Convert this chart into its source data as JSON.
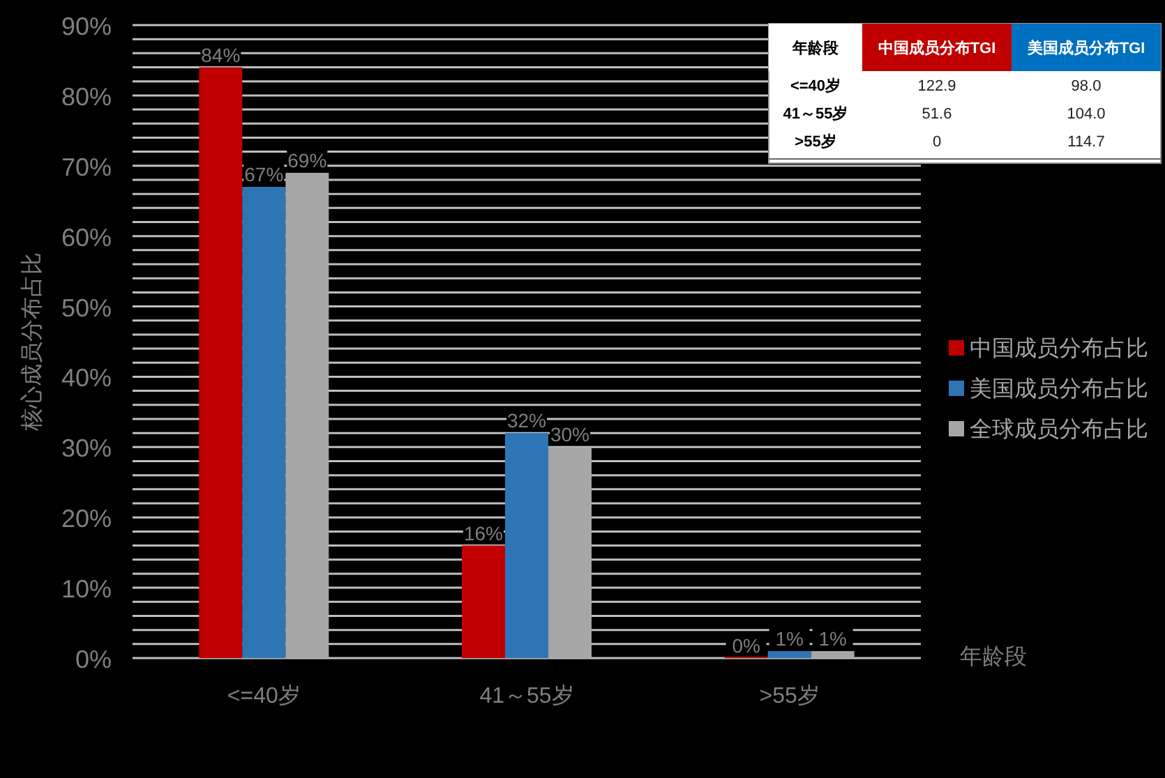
{
  "chart_data": [
    {
      "type": "bar",
      "ylabel": "核心成员分布占比",
      "xlabel": "年龄段",
      "categories": [
        "<=40岁",
        "41～55岁",
        ">55岁"
      ],
      "series": [
        {
          "name": "中国成员分布占比",
          "color": "#c00000",
          "values": [
            84,
            16,
            0
          ],
          "value_labels": [
            "84%",
            "16%",
            "0%"
          ]
        },
        {
          "name": "美国成员分布占比",
          "color": "#2e75b6",
          "values": [
            67,
            32,
            1
          ],
          "value_labels": [
            "67%",
            "32%",
            "1%"
          ]
        },
        {
          "name": "全球成员分布占比",
          "color": "#a6a6a6",
          "values": [
            69,
            30,
            1
          ],
          "value_labels": [
            "69%",
            "30%",
            "1%"
          ]
        }
      ],
      "ylim": [
        0,
        90
      ],
      "yticks": [
        {
          "value": 0,
          "label": "0%"
        },
        {
          "value": 2,
          "label": null
        },
        {
          "value": 4,
          "label": null
        },
        {
          "value": 6,
          "label": null
        },
        {
          "value": 8,
          "label": null
        },
        {
          "value": 10,
          "label": "10%"
        },
        {
          "value": 12,
          "label": null
        },
        {
          "value": 14,
          "label": null
        },
        {
          "value": 16,
          "label": null
        },
        {
          "value": 18,
          "label": null
        },
        {
          "value": 20,
          "label": "20%"
        },
        {
          "value": 22,
          "label": null
        },
        {
          "value": 24,
          "label": null
        },
        {
          "value": 26,
          "label": null
        },
        {
          "value": 28,
          "label": null
        },
        {
          "value": 30,
          "label": "30%"
        },
        {
          "value": 32,
          "label": null
        },
        {
          "value": 34,
          "label": null
        },
        {
          "value": 36,
          "label": null
        },
        {
          "value": 38,
          "label": null
        },
        {
          "value": 40,
          "label": "40%"
        },
        {
          "value": 42,
          "label": null
        },
        {
          "value": 44,
          "label": null
        },
        {
          "value": 46,
          "label": null
        },
        {
          "value": 48,
          "label": null
        },
        {
          "value": 50,
          "label": "50%"
        },
        {
          "value": 52,
          "label": null
        },
        {
          "value": 54,
          "label": null
        },
        {
          "value": 56,
          "label": null
        },
        {
          "value": 58,
          "label": null
        },
        {
          "value": 60,
          "label": "60%"
        },
        {
          "value": 62,
          "label": null
        },
        {
          "value": 64,
          "label": null
        },
        {
          "value": 66,
          "label": null
        },
        {
          "value": 68,
          "label": null
        },
        {
          "value": 70,
          "label": "70%"
        },
        {
          "value": 72,
          "label": null
        },
        {
          "value": 74,
          "label": null
        },
        {
          "value": 76,
          "label": null
        },
        {
          "value": 78,
          "label": null
        },
        {
          "value": 80,
          "label": "80%"
        },
        {
          "value": 82,
          "label": null
        },
        {
          "value": 84,
          "label": null
        },
        {
          "value": 86,
          "label": null
        },
        {
          "value": 88,
          "label": null
        },
        {
          "value": 90,
          "label": "90%"
        }
      ],
      "grid": "y",
      "legend": "right"
    },
    {
      "type": "other",
      "categories": [
        "年龄段",
        "中国成员分布TGI",
        "美国成员分布TGI"
      ],
      "colors": [
        "#ffffff",
        "#c00000",
        "#0070c0"
      ],
      "y_categories": [
        "<=40岁",
        "41～55岁",
        ">55岁"
      ],
      "cell_labels": [
        [
          "122.9",
          "98.0"
        ],
        [
          "51.6",
          "104.0"
        ],
        [
          "0",
          "114.7"
        ]
      ]
    }
  ]
}
